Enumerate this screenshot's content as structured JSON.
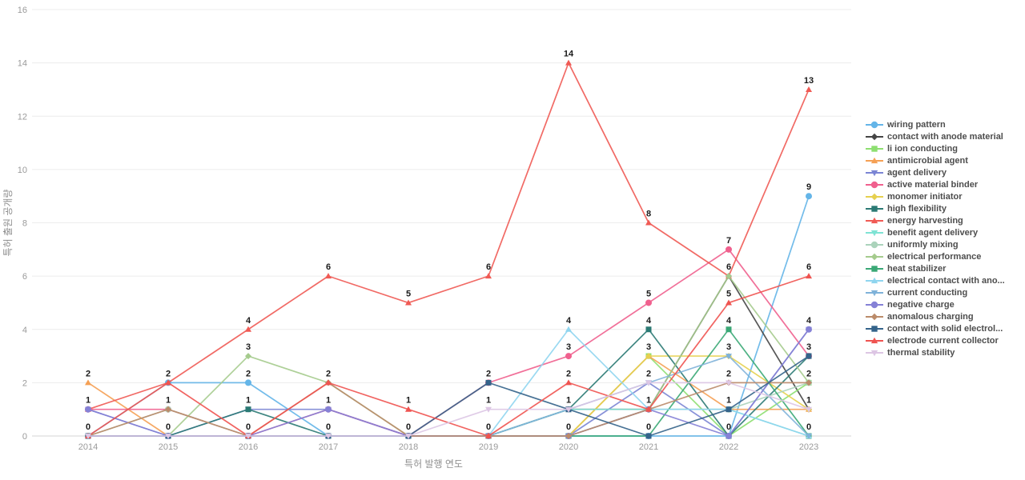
{
  "axes": {
    "x_title": "특허 발행 연도",
    "y_title": "특허 출원 공개량"
  },
  "chart_data": {
    "type": "line",
    "title": "",
    "xlabel": "특허 발행 연도",
    "ylabel": "특허 출원 공개량",
    "x": [
      2014,
      2015,
      2016,
      2017,
      2018,
      2019,
      2020,
      2021,
      2022,
      2023
    ],
    "ylim": [
      0,
      16
    ],
    "yticks": [
      0,
      2,
      4,
      6,
      8,
      10,
      12,
      14,
      16
    ],
    "grid": "horizontal",
    "legend_position": "right",
    "grid_color": "#ececec",
    "axis_line_color": "#d6d6d6",
    "label_color": "#1a1a1a",
    "series": [
      {
        "name": "wiring pattern",
        "marker": "circle",
        "color": "#64b5e8",
        "values": [
          0,
          2,
          2,
          0,
          0,
          0,
          0,
          0,
          0,
          9
        ]
      },
      {
        "name": "contact with anode material",
        "marker": "diamond",
        "color": "#454545",
        "values": [
          0,
          0,
          0,
          0,
          0,
          0,
          1,
          1,
          6,
          1
        ]
      },
      {
        "name": "li ion conducting",
        "marker": "square",
        "color": "#8ddf70",
        "values": [
          0,
          0,
          0,
          0,
          0,
          0,
          0,
          3,
          0,
          2
        ]
      },
      {
        "name": "antimicrobial agent",
        "marker": "triangle-up",
        "color": "#f5a054",
        "values": [
          2,
          0,
          0,
          0,
          0,
          0,
          0,
          3,
          1,
          1
        ]
      },
      {
        "name": "agent delivery",
        "marker": "triangle-down",
        "color": "#7b85d4",
        "values": [
          1,
          0,
          1,
          1,
          0,
          0,
          0,
          2,
          0,
          4
        ]
      },
      {
        "name": "active material binder",
        "marker": "circle",
        "color": "#f0608e",
        "values": [
          1,
          1,
          0,
          1,
          0,
          2,
          3,
          5,
          7,
          3
        ]
      },
      {
        "name": "monomer initiator",
        "marker": "diamond",
        "color": "#e6d04f",
        "values": [
          0,
          0,
          0,
          0,
          0,
          0,
          0,
          3,
          3,
          1
        ]
      },
      {
        "name": "high flexibility",
        "marker": "square",
        "color": "#2b7a74",
        "values": [
          0,
          0,
          1,
          0,
          0,
          0,
          1,
          4,
          0,
          3
        ]
      },
      {
        "name": "energy harvesting",
        "marker": "triangle-up",
        "color": "#f05a54",
        "values": [
          1,
          2,
          4,
          6,
          5,
          6,
          14,
          8,
          6,
          13
        ]
      },
      {
        "name": "benefit agent delivery",
        "marker": "triangle-down",
        "color": "#7fe3d4",
        "values": [
          0,
          0,
          0,
          0,
          0,
          0,
          1,
          1,
          1,
          0
        ]
      },
      {
        "name": "uniformly mixing",
        "marker": "circle",
        "color": "#abd3bb",
        "values": [
          0,
          1,
          0,
          0,
          0,
          0,
          0,
          1,
          1,
          2
        ]
      },
      {
        "name": "electrical performance",
        "marker": "diamond",
        "color": "#a5cb8d",
        "values": [
          0,
          0,
          3,
          2,
          0,
          0,
          0,
          1,
          6,
          2
        ]
      },
      {
        "name": "heat stabilizer",
        "marker": "square",
        "color": "#3aa876",
        "values": [
          0,
          0,
          0,
          0,
          0,
          0,
          0,
          0,
          4,
          0
        ]
      },
      {
        "name": "electrical contact with ano...",
        "marker": "triangle-up",
        "color": "#8fd5ef",
        "values": [
          0,
          0,
          0,
          0,
          0,
          0,
          4,
          1,
          1,
          0
        ]
      },
      {
        "name": "current conducting",
        "marker": "triangle-down",
        "color": "#7fb2d9",
        "values": [
          0,
          0,
          0,
          0,
          0,
          0,
          1,
          2,
          3,
          0
        ]
      },
      {
        "name": "negative charge",
        "marker": "circle",
        "color": "#8581d6",
        "values": [
          1,
          0,
          0,
          1,
          0,
          0,
          0,
          1,
          0,
          4
        ]
      },
      {
        "name": "anomalous charging",
        "marker": "diamond",
        "color": "#bb8b6a",
        "values": [
          0,
          1,
          0,
          2,
          0,
          0,
          0,
          1,
          2,
          2
        ]
      },
      {
        "name": "contact with solid electrol...",
        "marker": "square",
        "color": "#34638a",
        "values": [
          0,
          0,
          0,
          0,
          0,
          2,
          1,
          0,
          1,
          3
        ]
      },
      {
        "name": "electrode current collector",
        "marker": "triangle-up",
        "color": "#ef5350",
        "values": [
          0,
          2,
          0,
          2,
          1,
          0,
          2,
          1,
          5,
          6
        ]
      },
      {
        "name": "thermal stability",
        "marker": "triangle-down",
        "color": "#ddc6e4",
        "values": [
          0,
          0,
          0,
          0,
          0,
          1,
          1,
          2,
          2,
          1
        ]
      }
    ]
  }
}
